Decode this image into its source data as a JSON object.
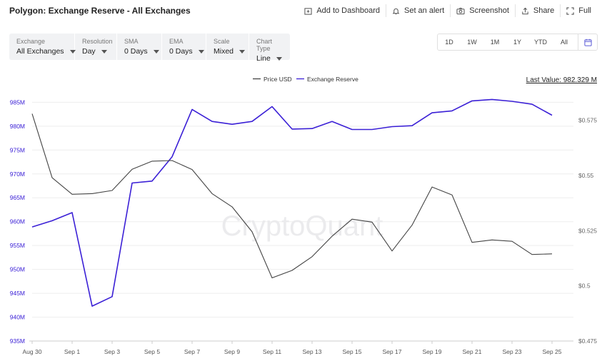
{
  "header": {
    "title": "Polygon: Exchange Reserve - All Exchanges",
    "actions": [
      {
        "label": "Add to Dashboard",
        "icon": "add-to-dashboard-icon"
      },
      {
        "label": "Set an alert",
        "icon": "bell-icon"
      },
      {
        "label": "Screenshot",
        "icon": "camera-icon"
      },
      {
        "label": "Share",
        "icon": "share-icon"
      },
      {
        "label": "Full",
        "icon": "fullscreen-icon"
      }
    ]
  },
  "controls": [
    {
      "label": "Exchange",
      "value": "All Exchanges"
    },
    {
      "label": "Resolution",
      "value": "Day"
    },
    {
      "label": "SMA",
      "value": "0 Days"
    },
    {
      "label": "EMA",
      "value": "0 Days"
    },
    {
      "label": "Scale",
      "value": "Mixed"
    },
    {
      "label": "Chart Type",
      "value": "Line"
    }
  ],
  "ranges": [
    "1D",
    "1W",
    "1M",
    "1Y",
    "YTD",
    "All"
  ],
  "colors": {
    "reserve": "#3b20d6",
    "price": "#444444",
    "grid": "#eeeeee",
    "axis_left": "#3b20d6",
    "axis_right": "#666666"
  },
  "chart_data": {
    "type": "line",
    "watermark": "CryptoQuant",
    "last_value": "Last Value: 982.329 M",
    "legend": [
      "Price USD",
      "Exchange Reserve"
    ],
    "x": [
      "Aug 30",
      "Aug 31",
      "Sep 1",
      "Sep 2",
      "Sep 3",
      "Sep 4",
      "Sep 5",
      "Sep 6",
      "Sep 7",
      "Sep 8",
      "Sep 9",
      "Sep 10",
      "Sep 11",
      "Sep 12",
      "Sep 13",
      "Sep 14",
      "Sep 15",
      "Sep 16",
      "Sep 17",
      "Sep 18",
      "Sep 19",
      "Sep 20",
      "Sep 21",
      "Sep 22",
      "Sep 23",
      "Sep 24",
      "Sep 25"
    ],
    "x_tick_labels": [
      "Aug 30",
      "Sep 1",
      "Sep 3",
      "Sep 5",
      "Sep 7",
      "Sep 9",
      "Sep 11",
      "Sep 13",
      "Sep 15",
      "Sep 17",
      "Sep 19",
      "Sep 21",
      "Sep 23",
      "Sep 25"
    ],
    "y_left": {
      "ylim": [
        935,
        987
      ],
      "ticks": [
        935,
        940,
        945,
        950,
        955,
        960,
        965,
        970,
        975,
        980,
        985
      ],
      "tick_labels": [
        "935M",
        "940M",
        "945M",
        "950M",
        "955M",
        "960M",
        "965M",
        "970M",
        "975M",
        "980M",
        "985M"
      ]
    },
    "y_right": {
      "ylim": [
        0.475,
        0.5875
      ],
      "ticks": [
        0.475,
        0.5,
        0.525,
        0.55,
        0.575
      ],
      "tick_labels": [
        "$0.475",
        "$0.5",
        "$0.525",
        "$0.55",
        "$0.575"
      ]
    },
    "series": [
      {
        "name": "Exchange Reserve",
        "axis": "left",
        "values": [
          958.9,
          960.2,
          961.9,
          942.3,
          944.3,
          968.1,
          968.5,
          973.6,
          983.5,
          981.0,
          980.4,
          981.0,
          984.1,
          979.4,
          979.5,
          981.0,
          979.3,
          979.3,
          979.9,
          980.1,
          982.8,
          983.2,
          985.3,
          985.6,
          985.2,
          984.6,
          982.3
        ]
      },
      {
        "name": "Price USD",
        "axis": "right",
        "values": [
          0.578,
          0.549,
          0.5415,
          0.5418,
          0.5432,
          0.5528,
          0.5565,
          0.5568,
          0.5527,
          0.5418,
          0.5358,
          0.5245,
          0.5036,
          0.507,
          0.5132,
          0.5225,
          0.5302,
          0.5289,
          0.5158,
          0.5275,
          0.5448,
          0.5412,
          0.5197,
          0.5208,
          0.5202,
          0.5142,
          0.5145
        ]
      }
    ]
  }
}
